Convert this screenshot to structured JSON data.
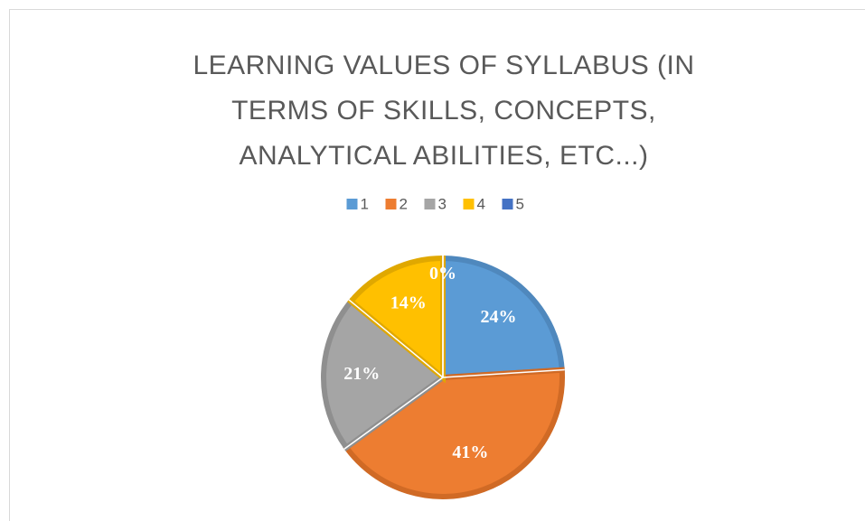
{
  "chart_data": {
    "type": "pie",
    "title": "LEARNING VALUES OF SYLLABUS (IN TERMS OF SKILLS, CONCEPTS, ANALYTICAL ABILITIES, ETC...)",
    "categories": [
      "1",
      "2",
      "3",
      "4",
      "5"
    ],
    "values": [
      24,
      41,
      21,
      14,
      0
    ],
    "value_labels": [
      "24%",
      "41%",
      "21%",
      "14%",
      "0%"
    ],
    "colors": [
      "#5b9bd5",
      "#ed7d31",
      "#a5a5a5",
      "#ffc000",
      "#4472c4"
    ],
    "borders": [
      "#4f88bd",
      "#d06a25",
      "#8f8f8f",
      "#e0a800",
      "#3a62ab"
    ],
    "legend": "top"
  }
}
